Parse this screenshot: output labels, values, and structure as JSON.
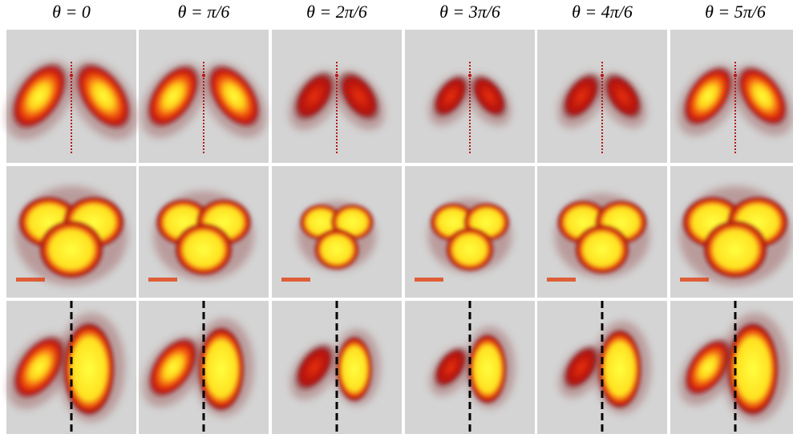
{
  "columns": [
    {
      "label": "θ = 0"
    },
    {
      "label": "θ = π/6"
    },
    {
      "label": "θ = 2π/6"
    },
    {
      "label": "θ = 3π/6"
    },
    {
      "label": "θ = 4π/6"
    },
    {
      "label": "θ = 5π/6"
    }
  ]
}
